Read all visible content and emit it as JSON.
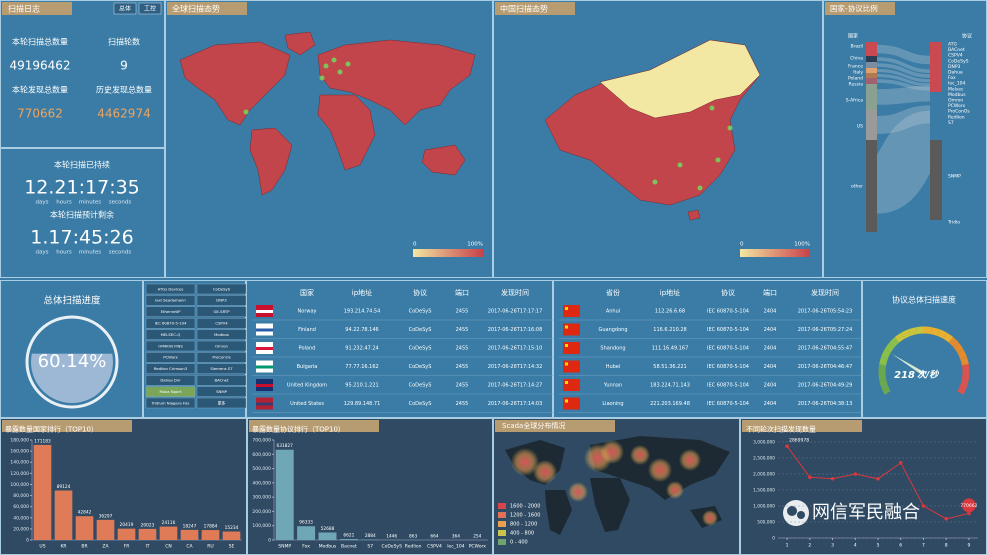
{
  "scan_log": {
    "title": "扫描日志",
    "buttons": [
      "总体",
      "工控"
    ],
    "stats": [
      {
        "label": "本轮扫描总数量",
        "value": 49196462
      },
      {
        "label": "扫描轮数",
        "value": 9
      },
      {
        "label": "本轮发现总数量",
        "value": 770662
      },
      {
        "label": "历史发现总数量",
        "value": 4462974
      }
    ],
    "elapsed": {
      "label": "本轮扫描已持续",
      "time": "12.21:17:35",
      "units": [
        "days",
        "hours",
        "minutes",
        "seconds"
      ]
    },
    "remaining": {
      "label": "本轮扫描预计剩余",
      "time": "1.17:45:26",
      "units": [
        "days",
        "hours",
        "minutes",
        "seconds"
      ]
    }
  },
  "world_map": {
    "title": "全球扫描态势",
    "legend": [
      "0",
      "100%"
    ]
  },
  "china_map": {
    "title": "中国扫描态势",
    "legend": [
      "0",
      "100%"
    ]
  },
  "sankey": {
    "title": "国家-协议比例",
    "left_header": "国家",
    "right_header": "协议",
    "countries": [
      "Brazil",
      "China",
      "France",
      "Italy",
      "Poland",
      "Russia",
      "S-Africa",
      "US",
      "other"
    ],
    "protocols": [
      "ATG",
      "BACnet",
      "CSPV4",
      "CoDeSyS",
      "DNP3",
      "Dahua",
      "Fox",
      "Iec_104",
      "Melsec",
      "Modbus",
      "Omron",
      "PCWorx",
      "ProConOs",
      "Redlion",
      "S7",
      "SNMP",
      "Tridio"
    ]
  },
  "progress": {
    "title": "总体扫描进度",
    "value": 60.14,
    "value_label": "60.14%"
  },
  "protocol_list": [
    "ATGs Devices",
    "CoDeSyS",
    "Iaxi Seadamann",
    "DNP3",
    "EthernetIP",
    "GE-SRTP",
    "IEC 60870-5-104",
    "CSPV4",
    "MELSEC-Q",
    "Modbus",
    "OMRON FINS",
    "Omron",
    "PCWorx",
    "ProConOs",
    "Redlion Crimson3",
    "Siemens S7",
    "Dahua Dvr",
    "BACnet",
    "Moxa Nport",
    "SNMP",
    "Tridium Niagara Fox",
    "更多"
  ],
  "global_table": {
    "columns": [
      "国家",
      "ip地址",
      "协议",
      "端口",
      "发现时间"
    ],
    "rows": [
      [
        "Norway",
        "193.214.74.54",
        "CoDeSyS",
        2455,
        "2017-06-26T17:17:17"
      ],
      [
        "Finland",
        "94.22.78.146",
        "CoDeSyS",
        2455,
        "2017-06-26T17:16:08"
      ],
      [
        "Poland",
        "91.232.47.24",
        "CoDeSyS",
        2455,
        "2017-06-26T17:15:10"
      ],
      [
        "Bulgaria",
        "77.77.16.162",
        "CoDeSyS",
        2455,
        "2017-06-26T17:14:32"
      ],
      [
        "United Kingdom",
        "95.210.1.221",
        "CoDeSyS",
        2455,
        "2017-06-26T17:14:27"
      ],
      [
        "United States",
        "129.89.148.71",
        "CoDeSyS",
        2455,
        "2017-06-26T17:14:03"
      ]
    ]
  },
  "china_table": {
    "columns": [
      "省份",
      "ip地址",
      "协议",
      "端口",
      "发现时间"
    ],
    "rows": [
      [
        "Anhui",
        "112.26.6.68",
        "IEC 60870-5-104",
        2404,
        "2017-06-26T05:54:23"
      ],
      [
        "Guangdong",
        "116.6.210.28",
        "IEC 60870-5-104",
        2404,
        "2017-06-26T05:27:24"
      ],
      [
        "Shandong",
        "111.16.49.167",
        "IEC 60870-5-104",
        2404,
        "2017-06-26T04:55:47"
      ],
      [
        "Hubei",
        "58.51.36.221",
        "IEC 60870-5-104",
        2404,
        "2017-06-26T04:46:47"
      ],
      [
        "Yunnan",
        "183.224.71.143",
        "IEC 60870-5-104",
        2404,
        "2017-06-26T04:49:29"
      ],
      [
        "Liaoning",
        "221.203.169.48",
        "IEC 60870-5-104",
        2404,
        "2017-06-26T04:38:13"
      ]
    ]
  },
  "gauge": {
    "title": "协议总体扫描速度",
    "value": 218,
    "unit": "次/秒"
  },
  "scada_map": {
    "title": "Scada全球分布情况",
    "legend": [
      {
        "label": "1600 - 2000",
        "color": "#d9434a"
      },
      {
        "label": "1200 - 1600",
        "color": "#e2705a"
      },
      {
        "label": "800 - 1200",
        "color": "#e9a052"
      },
      {
        "label": "400 - 800",
        "color": "#c9c34c"
      },
      {
        "label": "0 - 400",
        "color": "#6fa36f"
      }
    ]
  },
  "chart_data": [
    {
      "type": "bar",
      "title": "暴露数量国家排行（TOP10）",
      "categories": [
        "US",
        "KR",
        "BR",
        "ZA",
        "FR",
        "IT",
        "CN",
        "CA",
        "RU",
        "SE"
      ],
      "values": [
        171183,
        89124,
        42842,
        36297,
        20419,
        20023,
        24116,
        18247,
        17884,
        15234
      ],
      "color": "#e07b58",
      "ylim": [
        0,
        180000
      ],
      "yticks": [
        0,
        {
          "value": 20000,
          "label": "20,000"
        },
        {
          "value": 40000,
          "label": "40,000"
        },
        {
          "value": 60000,
          "label": "60,000"
        },
        {
          "value": 80000,
          "label": "80,000"
        },
        {
          "value": 100000,
          "label": "100,000"
        },
        {
          "value": 120000,
          "label": "120,000"
        },
        {
          "value": 140000,
          "label": "140,000"
        },
        {
          "value": 160000,
          "label": "160,000"
        },
        {
          "value": 180000,
          "label": "180,000"
        }
      ]
    },
    {
      "type": "bar",
      "title": "暴露数量协议排行（TOP10）",
      "categories": [
        "SNMP",
        "Fox",
        "Modbus",
        "Bacnet",
        "S7",
        "CoDeSyS",
        "Redlion",
        "CSPV4",
        "Iec_104",
        "PCWorx"
      ],
      "values": [
        631827,
        96333,
        52688,
        6621,
        2884,
        1446,
        863,
        664,
        364,
        254
      ],
      "color": "#6fa7b6",
      "ylim": [
        0,
        700000
      ],
      "yticks": [
        0,
        {
          "value": 100000,
          "label": "100,000"
        },
        {
          "value": 200000,
          "label": "200,000"
        },
        {
          "value": 300000,
          "label": "300,000"
        },
        {
          "value": 400000,
          "label": "400,000"
        },
        {
          "value": 500000,
          "label": "500,000"
        },
        {
          "value": 600000,
          "label": "600,000"
        },
        {
          "value": 700000,
          "label": "700,000"
        }
      ]
    },
    {
      "type": "line",
      "title": "不同轮次扫描发现数量",
      "x": [
        1,
        2,
        3,
        4,
        5,
        6,
        7,
        8,
        9
      ],
      "values": [
        2869978,
        1900000,
        1850000,
        2000000,
        1850000,
        2350000,
        1000000,
        600000,
        770662
      ],
      "color": "#d9383f",
      "xlim": [
        0.6,
        9.4
      ],
      "xticks": [
        1,
        2,
        3,
        4,
        5,
        6,
        7,
        8,
        9
      ],
      "ylim": [
        0,
        3000000
      ],
      "yticks": [
        0,
        {
          "value": 500000,
          "label": "500,000"
        },
        {
          "value": 1000000,
          "label": "1,000,000"
        },
        {
          "value": 1500000,
          "label": "1,500,000"
        },
        {
          "value": 2000000,
          "label": "2,000,000"
        },
        {
          "value": 2500000,
          "label": "2,500,000"
        },
        {
          "value": 3000000,
          "label": "3,000,000"
        }
      ],
      "grid": true
    }
  ],
  "watermark": "网信军民融合"
}
